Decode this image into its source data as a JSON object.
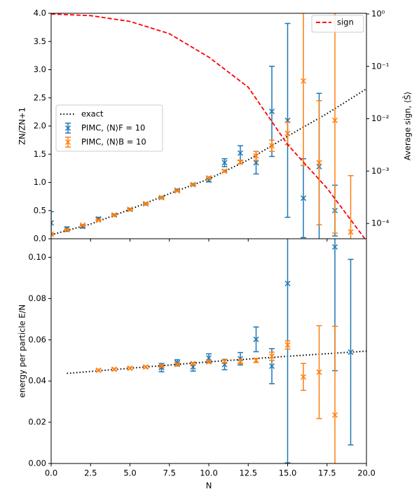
{
  "chart_data": [
    {
      "type": "errorbar",
      "ylabel": "ZN/ZN+1",
      "y2label": "Average sign, ⟨Ŝ⟩",
      "xlim": [
        0,
        20
      ],
      "ylim": [
        0,
        4
      ],
      "yticks": [
        {
          "value": 0,
          "label": "0.0"
        },
        0.5,
        {
          "value": 1,
          "label": "1.0"
        },
        1.5,
        {
          "value": 2,
          "label": "2.0"
        },
        2.5,
        {
          "value": 3,
          "label": "3.0"
        },
        3.5,
        {
          "value": 4,
          "label": "4.0"
        }
      ],
      "y2lim": [
        5.1e-05,
        1.03
      ],
      "y2log": true,
      "y2ticks": [
        {
          "value": 0.0001,
          "label": "10⁻⁴"
        },
        {
          "value": 0.001,
          "label": "10⁻³"
        },
        {
          "value": 0.01,
          "label": "10⁻²"
        },
        {
          "value": 0.1,
          "label": "10⁻¹"
        },
        {
          "value": 1,
          "label": "10⁰"
        }
      ],
      "legend": "center left",
      "legend2": "upper right",
      "series": [
        {
          "name": "exact",
          "style": "dotted",
          "color": "#000000",
          "x": [
            0,
            2.5,
            5,
            7.5,
            10,
            12.5,
            15,
            17.5,
            20
          ],
          "values": [
            0.07,
            0.26,
            0.52,
            0.8,
            1.06,
            1.4,
            1.82,
            2.22,
            2.66
          ]
        },
        {
          "name": "PIMC, ⟨N⟩F = 10",
          "style": "errorbar",
          "color": "#1f77b4",
          "x": [
            0,
            1,
            2,
            3,
            4,
            5,
            6,
            7,
            8,
            9,
            10,
            11,
            12,
            13,
            14,
            15,
            16,
            17,
            18
          ],
          "values": [
            0.28,
            0.17,
            0.22,
            0.35,
            0.42,
            0.52,
            0.62,
            0.73,
            0.86,
            0.96,
            1.04,
            1.35,
            1.52,
            1.35,
            2.26,
            2.1,
            0.72,
            1.28,
            0.5
          ],
          "errors": [
            0.2,
            0.04,
            0.03,
            0.03,
            0.02,
            0.02,
            0.02,
            0.02,
            0.02,
            0.02,
            0.03,
            0.07,
            0.13,
            0.2,
            0.8,
            1.72,
            0.7,
            1.3,
            0.45
          ]
        },
        {
          "name": "PIMC, ⟨N⟩B = 10",
          "style": "errorbar",
          "color": "#ff7f0e",
          "x": [
            0,
            1,
            2,
            3,
            4,
            5,
            6,
            7,
            8,
            9,
            10,
            11,
            12,
            13,
            14,
            15,
            16,
            17,
            18,
            19
          ],
          "values": [
            0.08,
            0.16,
            0.24,
            0.33,
            0.42,
            0.52,
            0.62,
            0.73,
            0.85,
            0.96,
            1.08,
            1.2,
            1.36,
            1.47,
            1.65,
            1.87,
            2.8,
            1.35,
            2.1,
            0.12
          ],
          "errors": [
            0.01,
            0.01,
            0.01,
            0.01,
            0.01,
            0.01,
            0.01,
            0.01,
            0.01,
            0.01,
            0.02,
            0.02,
            0.03,
            0.08,
            0.1,
            0.2,
            1.5,
            1.1,
            2.0,
            1.0
          ]
        },
        {
          "name": "sign",
          "style": "dashed",
          "color": "#ff0000",
          "axis": "y2",
          "x": [
            0,
            2.5,
            5,
            7.5,
            10,
            12.5,
            15,
            17.5,
            19.9
          ],
          "values": [
            1,
            0.93,
            0.72,
            0.42,
            0.15,
            0.04,
            0.0032,
            0.00047,
            5.1e-05
          ]
        }
      ]
    },
    {
      "type": "errorbar",
      "xlabel": "N",
      "ylabel": "energy per particle E/N",
      "xlim": [
        0,
        20
      ],
      "xticks": [
        {
          "value": 0,
          "label": "0.0"
        },
        2.5,
        {
          "value": 5,
          "label": "5.0"
        },
        7.5,
        {
          "value": 10,
          "label": "10.0"
        },
        12.5,
        {
          "value": 15,
          "label": "15.0"
        },
        17.5,
        {
          "value": 20,
          "label": "20.0"
        }
      ],
      "ylim": [
        0,
        0.109
      ],
      "yticks": [
        {
          "value": 0,
          "label": "0.00"
        },
        {
          "value": 0.02,
          "label": "0.02"
        },
        {
          "value": 0.04,
          "label": "0.04"
        },
        {
          "value": 0.06,
          "label": "0.06"
        },
        {
          "value": 0.08,
          "label": "0.08"
        },
        {
          "value": 0.1,
          "label": "0.10"
        }
      ],
      "series": [
        {
          "style": "dotted",
          "color": "#000000",
          "x": [
            1,
            5,
            10,
            15,
            20
          ],
          "values": [
            0.0437,
            0.0462,
            0.0493,
            0.052,
            0.0545
          ]
        },
        {
          "style": "errorbar",
          "color": "#1f77b4",
          "x": [
            7,
            8,
            9,
            10,
            11,
            12,
            13,
            14,
            15,
            18,
            19
          ],
          "values": [
            0.0465,
            0.0488,
            0.0468,
            0.0512,
            0.048,
            0.0508,
            0.0602,
            0.0472,
            0.0873,
            0.105,
            0.054
          ],
          "errors": [
            0.002,
            0.0015,
            0.002,
            0.002,
            0.0025,
            0.003,
            0.006,
            0.0085,
            0.087,
            0.06,
            0.045
          ]
        },
        {
          "style": "errorbar",
          "color": "#ff7f0e",
          "x": [
            3,
            4,
            5,
            6,
            7,
            8,
            9,
            10,
            11,
            12,
            13,
            14,
            15,
            16,
            17,
            18
          ],
          "values": [
            0.0452,
            0.0457,
            0.0462,
            0.0468,
            0.0472,
            0.048,
            0.0485,
            0.0493,
            0.0495,
            0.0495,
            0.05,
            0.052,
            0.0575,
            0.042,
            0.0443,
            0.0235
          ],
          "errors": [
            0.0005,
            0.0005,
            0.0005,
            0.0005,
            0.0005,
            0.0005,
            0.0005,
            0.0006,
            0.0007,
            0.001,
            0.001,
            0.002,
            0.002,
            0.0065,
            0.0225,
            0.043
          ]
        }
      ]
    }
  ]
}
